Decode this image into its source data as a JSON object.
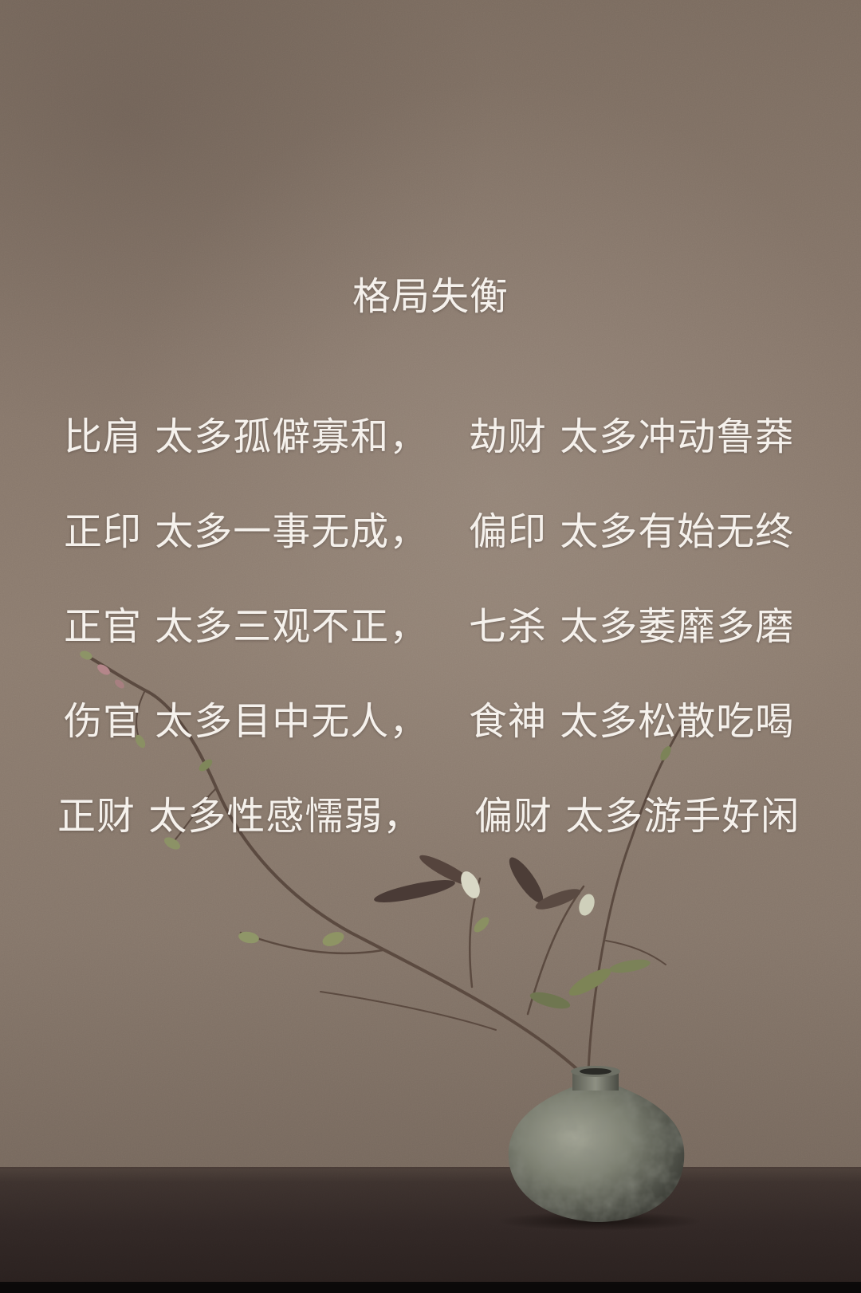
{
  "title": "格局失衡",
  "lines": [
    {
      "left": "比肩 太多孤僻寡和，",
      "right": "劫财 太多冲动鲁莽"
    },
    {
      "left": "正印 太多一事无成，",
      "right": "偏印 太多有始无终"
    },
    {
      "left": "正官 太多三观不正，",
      "right": "七杀 太多萎靡多磨"
    },
    {
      "left": "伤官 太多目中无人，",
      "right": "食神 太多松散吃喝"
    },
    {
      "left": "正财 太多性感懦弱，",
      "right": "偏财 太多游手好闲"
    }
  ],
  "colors": {
    "text": "#f5f1ec",
    "wall": "#887869",
    "table": "#2f2624",
    "vase": "#7d8072"
  }
}
